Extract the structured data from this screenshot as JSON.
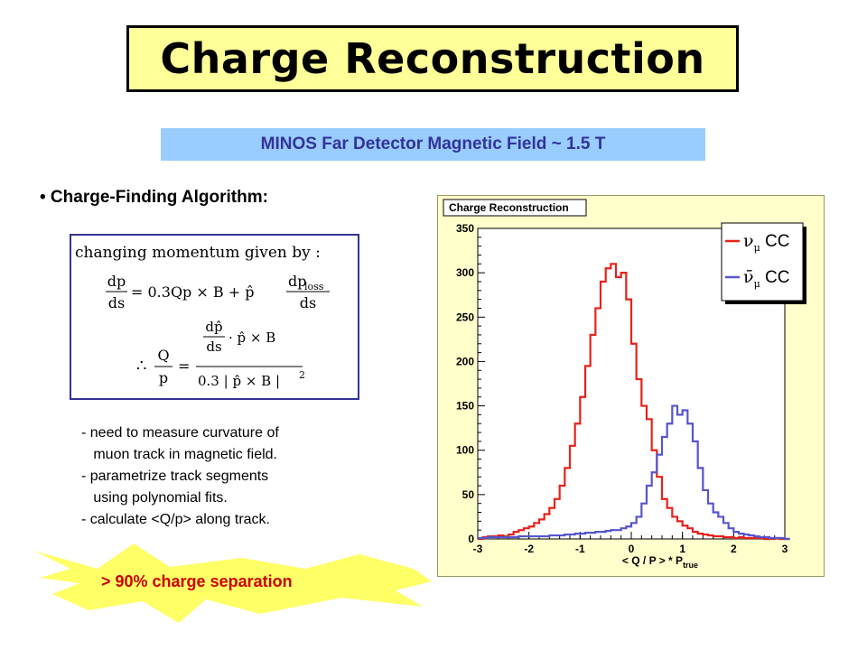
{
  "slide": {
    "title": "Charge Reconstruction",
    "subtitle": "MINOS Far Detector Magnetic Field ~ 1.5 T",
    "bullet": "• Charge-Finding Algorithm:",
    "formula": {
      "line1": "changing momentum given by :",
      "eq1_lhs_num": "dp",
      "eq1_lhs_den": "ds",
      "eq1_mid": "= 0.3Qp × B + p̂",
      "eq1_rhs_num": "dp",
      "eq1_rhs_sub": "loss",
      "eq1_rhs_den": "ds",
      "eq2_therefore": "∴",
      "eq2_lhs_num": "Q",
      "eq2_lhs_den": "p",
      "eq2_eq": "=",
      "eq2_num_frac_num": "dp̂",
      "eq2_num_frac_den": "ds",
      "eq2_num_rest": "· p̂ × B",
      "eq2_den": "0.3 | p̂ × B |",
      "eq2_den_sup": "2"
    },
    "notes": [
      "- need to measure curvature of",
      "   muon track in magnetic field.",
      "- parametrize track segments",
      "   using polynomial fits.",
      "- calculate <Q/p> along track."
    ],
    "burst_text": "> 90% charge separation",
    "colors": {
      "title_bg": "#ffff99",
      "subtitle_bg": "#99ccff",
      "subtitle_text": "#333399",
      "burst": "#ffff66",
      "burst_text": "#cc0000"
    }
  },
  "chart_data": {
    "type": "line",
    "title": "Charge Reconstruction",
    "xlabel": "< Q / P > * P",
    "xlabel_sub": "true",
    "ylabel": "",
    "xlim": [
      -3,
      3
    ],
    "ylim": [
      0,
      350
    ],
    "xticks": [
      "-3",
      "-2",
      "-1",
      "0",
      "1",
      "2",
      "3"
    ],
    "yticks": [
      "0",
      "50",
      "100",
      "150",
      "200",
      "250",
      "300",
      "350"
    ],
    "bin_width": 0.1,
    "x_start": -3.0,
    "series": [
      {
        "name": "ν_μ CC",
        "label_main": "ν",
        "label_sub": "μ",
        "label_tail": "CC",
        "color": "#e8211a",
        "values": [
          0,
          2,
          3,
          3,
          4,
          3,
          5,
          8,
          10,
          12,
          14,
          18,
          22,
          28,
          35,
          45,
          60,
          80,
          105,
          130,
          160,
          195,
          230,
          260,
          290,
          305,
          310,
          295,
          300,
          270,
          220,
          180,
          150,
          135,
          100,
          70,
          45,
          35,
          25,
          20,
          15,
          12,
          8,
          6,
          5,
          4,
          3,
          3,
          2,
          2,
          1,
          2,
          1,
          1,
          1,
          1,
          0,
          0,
          1,
          0,
          0
        ]
      },
      {
        "name": "ν̄_μ CC",
        "label_main": "ν̄",
        "label_sub": "μ",
        "label_tail": "CC",
        "color": "#5555cc",
        "values": [
          1,
          1,
          2,
          2,
          2,
          2,
          2,
          2,
          3,
          3,
          3,
          3,
          3,
          3,
          4,
          4,
          4,
          5,
          5,
          6,
          6,
          7,
          7,
          8,
          8,
          9,
          10,
          10,
          12,
          14,
          18,
          25,
          40,
          60,
          75,
          95,
          115,
          130,
          150,
          140,
          145,
          130,
          110,
          80,
          55,
          40,
          30,
          25,
          18,
          12,
          8,
          6,
          5,
          4,
          3,
          2,
          2,
          1,
          1,
          1,
          0
        ]
      }
    ],
    "legend_position": "top-right",
    "grid": false
  }
}
